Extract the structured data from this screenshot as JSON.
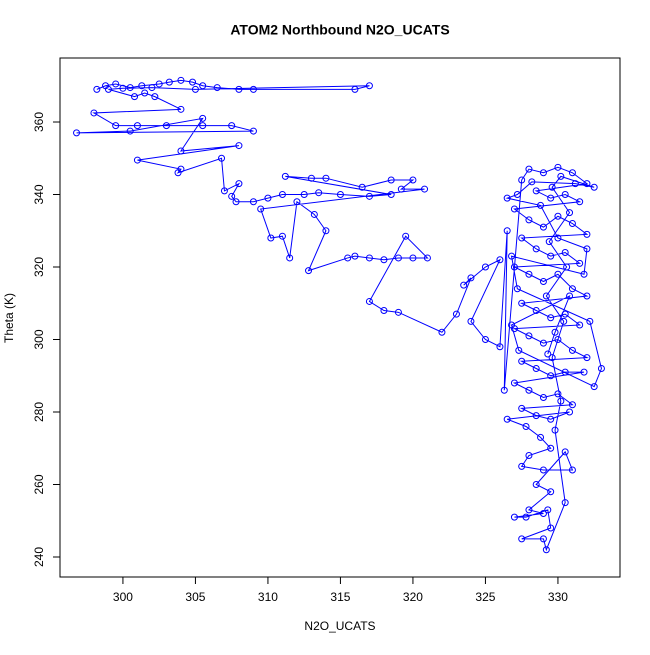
{
  "chart_data": {
    "type": "scatter-line",
    "title": "ATOM2 Northbound N2O_UCATS",
    "x_label": "N2O_UCATS",
    "y_label": "Theta (K)",
    "xlim": [
      295.66,
      334.28
    ],
    "ylim": [
      234.48,
      377.66
    ],
    "xticks": [
      300,
      305,
      310,
      315,
      320,
      325,
      330
    ],
    "yticks": [
      240,
      260,
      280,
      300,
      320,
      340,
      360
    ],
    "series": [
      {
        "color": "#0000ff",
        "x": [
          298.2,
          298.8,
          299.5,
          300.5,
          301.3,
          302.5,
          303.2,
          304,
          304.8,
          305.5,
          306.5,
          308,
          309,
          316,
          317,
          305,
          302,
          300,
          299,
          300.8,
          301.5,
          302.2,
          304,
          298,
          299.5,
          301,
          303,
          305.5,
          307.5,
          309,
          296.8,
          300.5,
          305.5,
          304,
          308,
          301,
          304,
          303.8,
          306.8,
          307,
          308,
          307.5,
          307.8,
          309,
          310,
          311,
          312.5,
          313.5,
          315,
          317,
          318.5,
          311.2,
          313,
          314,
          316.5,
          318.5,
          320,
          319.2,
          320.8,
          309.5,
          310.2,
          311,
          311.5,
          312,
          313.2,
          314,
          312.8,
          315.5,
          316,
          317,
          318,
          319,
          320,
          321,
          319.5,
          317,
          318,
          319,
          322,
          323,
          324,
          323.5,
          325,
          326,
          324,
          325,
          326,
          326.5,
          326.3,
          327.5,
          328,
          329,
          330,
          331,
          332,
          328.5,
          329.5,
          330.5,
          331.5,
          327,
          328,
          329,
          330,
          331,
          332,
          327.5,
          328.5,
          329.5,
          330.5,
          331.5,
          327,
          328,
          329,
          330,
          331,
          332,
          327.5,
          328.5,
          329.5,
          330.5,
          331.5,
          327,
          328,
          329,
          330,
          331,
          332,
          327.5,
          328.5,
          329.5,
          330.5,
          331.8,
          327,
          328,
          329,
          330,
          331,
          327.5,
          328.5,
          329.5,
          330.8,
          326.5,
          327.8,
          328.8,
          329.5,
          328,
          327.5,
          329,
          331,
          330.5,
          328.5,
          329.5,
          328,
          329,
          327,
          327.8,
          329.3,
          329.5,
          327.5,
          329,
          329.2,
          330.5,
          329.8,
          330.2,
          329.6,
          330.4,
          329.2,
          330.6,
          329.4,
          330.8,
          329.6,
          330.2,
          332.5,
          331.2,
          328.2,
          327.2,
          326.5,
          328.8,
          330,
          332,
          331.8,
          326.8,
          327.2,
          332.2,
          333,
          332.5,
          327.3,
          326.8,
          330.8,
          329.8,
          329.3
        ],
        "y": [
          369,
          370,
          370.5,
          369.5,
          370,
          370.5,
          371,
          371.5,
          371,
          370,
          369.5,
          369,
          369,
          369,
          370,
          369,
          369.5,
          369.3,
          369,
          367,
          368,
          367,
          363.5,
          362.5,
          359,
          359,
          359,
          359,
          359,
          357.5,
          357,
          357.5,
          361,
          352,
          353.5,
          349.5,
          347,
          346,
          350,
          341,
          343,
          339.5,
          338,
          338,
          339,
          340,
          340,
          340.5,
          340,
          339.5,
          340,
          345,
          344.5,
          344.5,
          342,
          344,
          344,
          341.5,
          341.5,
          336,
          328,
          328.5,
          322.5,
          338,
          334.5,
          330,
          319,
          322.5,
          323,
          322.5,
          322,
          322.5,
          322.5,
          322.5,
          328.5,
          310.5,
          308,
          307.5,
          302,
          307,
          317,
          315,
          320,
          322,
          305,
          300,
          298,
          330,
          286,
          344,
          347,
          346,
          347.5,
          346,
          343,
          341,
          339,
          340,
          338,
          336,
          333,
          331,
          334,
          332,
          329,
          328,
          325,
          323,
          324,
          321,
          320,
          318,
          316,
          318,
          314,
          312,
          310,
          308,
          306,
          307,
          304,
          303,
          301,
          299,
          300,
          297,
          295,
          294,
          292,
          290,
          291,
          291,
          288,
          286,
          284,
          285,
          282,
          281,
          279,
          278,
          280,
          278,
          276,
          273,
          270,
          268,
          265,
          264,
          264,
          269,
          260,
          258,
          253,
          252,
          251,
          251,
          253,
          248,
          245,
          245,
          242,
          255,
          275,
          283,
          295,
          305,
          312,
          320,
          327,
          335,
          342,
          345,
          342,
          343,
          343.5,
          340,
          339,
          337,
          328,
          325,
          318,
          323,
          314,
          305,
          292,
          287,
          297,
          304,
          312,
          302,
          296
        ]
      }
    ]
  }
}
